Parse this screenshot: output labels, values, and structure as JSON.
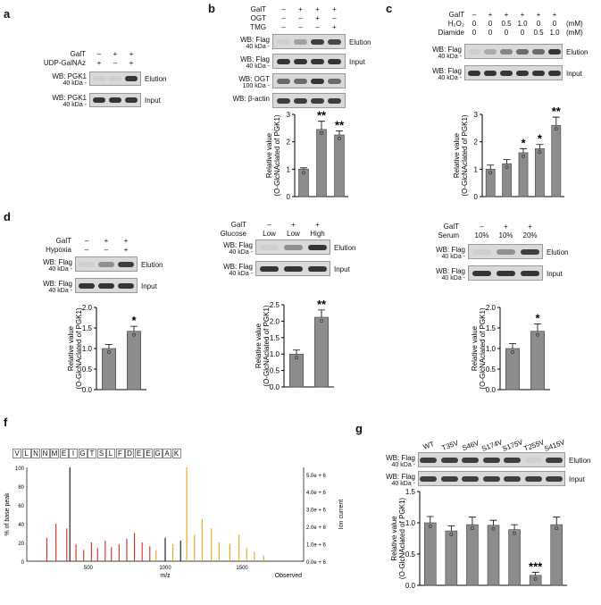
{
  "panels": {
    "a": {
      "label": "a",
      "rows": [
        {
          "name": "GalT",
          "values": [
            "–",
            "+",
            "+"
          ]
        },
        {
          "name": "UDP-GalNAz",
          "values": [
            "+",
            "–",
            "+"
          ]
        }
      ],
      "blots": [
        {
          "wb": "WB: PGK1",
          "kda": "40 kDa",
          "side": "Elution",
          "bands": [
            0.05,
            0.05,
            0.9
          ]
        },
        {
          "wb": "WB: PGK1",
          "kda": "40 kDa",
          "side": "Input",
          "bands": [
            0.9,
            0.9,
            0.9
          ]
        }
      ]
    },
    "b": {
      "label": "b",
      "rows": [
        {
          "name": "GalT",
          "values": [
            "–",
            "+",
            "+",
            "+"
          ]
        },
        {
          "name": "OGT",
          "values": [
            "–",
            "–",
            "+",
            "–"
          ]
        },
        {
          "name": "TMG",
          "values": [
            "–",
            "–",
            "–",
            "+"
          ]
        }
      ],
      "blots": [
        {
          "wb": "WB: Flag",
          "kda": "40 kDa",
          "side": "Elution",
          "bands": [
            0.05,
            0.3,
            0.85,
            0.8
          ]
        },
        {
          "wb": "WB: Flag",
          "kda": "40 kDa",
          "side": "Input",
          "bands": [
            0.9,
            0.9,
            0.9,
            0.9
          ]
        },
        {
          "wb": "WB: OGT",
          "kda": "100 kDa",
          "side": "",
          "bands": [
            0.6,
            0.6,
            0.9,
            0.6
          ]
        },
        {
          "wb": "WB: β-actin",
          "kda": "",
          "side": "",
          "bands": [
            0.85,
            0.85,
            0.85,
            0.85
          ]
        }
      ],
      "ylabel": [
        "Relative value",
        "(O-GlcNAclated of PGK1)"
      ]
    },
    "c": {
      "label": "c",
      "rows": [
        {
          "name": "GalT",
          "values": [
            "–",
            "+",
            "+",
            "+",
            "+",
            "+"
          ],
          "unit": ""
        },
        {
          "name": "H₂O₂",
          "values": [
            "0",
            "0",
            "0.5",
            "1.0",
            "0",
            "0"
          ],
          "unit": "(mM)"
        },
        {
          "name": "Diamide",
          "values": [
            "0",
            "0",
            "0",
            "0",
            "0.5",
            "1.0"
          ],
          "unit": "(mM)"
        }
      ],
      "blots": [
        {
          "wb": "WB: Flag",
          "kda": "40 kDa",
          "side": "Elution",
          "bands": [
            0.05,
            0.25,
            0.45,
            0.6,
            0.6,
            0.9
          ]
        },
        {
          "wb": "WB: Flag",
          "kda": "40 kDa",
          "side": "Input",
          "bands": [
            0.9,
            0.9,
            0.9,
            0.9,
            0.9,
            0.9
          ]
        }
      ],
      "ylabel": [
        "Relative value",
        "(O-GlcNAclated of PGK1)"
      ]
    },
    "d1": {
      "label": "d",
      "rows": [
        {
          "name": "GalT",
          "values": [
            "–",
            "+",
            "+"
          ]
        },
        {
          "name": "Hypoxia",
          "values": [
            "–",
            "–",
            "+"
          ]
        }
      ],
      "blots": [
        {
          "wb": "WB: Flag",
          "kda": "40 kDa",
          "side": "Elution",
          "bands": [
            0.05,
            0.4,
            0.85
          ]
        },
        {
          "wb": "WB: Flag",
          "kda": "40 kDa",
          "side": "Input",
          "bands": [
            0.9,
            0.9,
            0.9
          ]
        }
      ],
      "ylabel": [
        "Relative value",
        "(O-GlcNAclated of PGK1)"
      ]
    },
    "d2": {
      "rows": [
        {
          "name": "GalT",
          "values": [
            "–",
            "+",
            "+"
          ]
        },
        {
          "name": "Glucose",
          "values": [
            "Low",
            "Low",
            "High"
          ]
        }
      ],
      "blots": [
        {
          "wb": "WB: Flag",
          "kda": "40 kDa",
          "side": "Elution",
          "bands": [
            0.05,
            0.4,
            0.9
          ]
        },
        {
          "wb": "WB: Flag",
          "kda": "40 kDa",
          "side": "Input",
          "bands": [
            0.9,
            0.9,
            0.9
          ]
        }
      ],
      "ylabel": [
        "Relative value",
        "(O-GlcNAclated of PGK1)"
      ]
    },
    "d3": {
      "rows": [
        {
          "name": "GalT",
          "values": [
            "–",
            "+",
            "+"
          ]
        },
        {
          "name": "Serum",
          "values": [
            "10%",
            "10%",
            "20%"
          ]
        }
      ],
      "blots": [
        {
          "wb": "WB: Flag",
          "kda": "40 kDa",
          "side": "Elution",
          "bands": [
            0.05,
            0.4,
            0.85
          ]
        },
        {
          "wb": "WB: Flag",
          "kda": "40 kDa",
          "side": "Input",
          "bands": [
            0.9,
            0.9,
            0.9
          ]
        }
      ],
      "ylabel": [
        "Relative value",
        "(O-GlcNAclated of PGK1)"
      ]
    },
    "f": {
      "label": "f",
      "sequence": [
        "V",
        "L",
        "N",
        "N",
        "M",
        "E",
        "I",
        "G",
        "T",
        "S",
        "L",
        "F",
        "D",
        "E",
        "E",
        "G",
        "A",
        "K"
      ],
      "ylabel": "% of base peak",
      "y2label": "Ion current",
      "xlabel": "m/z",
      "observed": "Observed",
      "yticks": [
        "0",
        "20",
        "40",
        "60",
        "80",
        "100"
      ],
      "xticks": [
        "500",
        "1000",
        "1500"
      ],
      "y2ticks": [
        "0.0e + 6",
        "1.0e + 6",
        "2.0e + 6",
        "3.0e + 6",
        "4.0e + 6",
        "5.0e + 6"
      ]
    },
    "g": {
      "label": "g",
      "lanes": [
        "WT",
        "T35V",
        "S46V",
        "S174V",
        "S175V",
        "T255V",
        "S415V"
      ],
      "blots": [
        {
          "wb": "WB: Flag",
          "kda": "40 kDa",
          "side": "Elution",
          "bands": [
            0.85,
            0.85,
            0.85,
            0.85,
            0.85,
            0.05,
            0.85
          ]
        },
        {
          "wb": "WB: Flag",
          "kda": "40 kDa",
          "side": "Input",
          "bands": [
            0.85,
            0.85,
            0.85,
            0.85,
            0.85,
            0.85,
            0.85
          ]
        }
      ],
      "ylabel": [
        "Relative value",
        "(O-GlcNAclated of PGK1)"
      ]
    }
  },
  "chart_data": [
    {
      "id": "b",
      "type": "bar",
      "categories": [
        "1",
        "2",
        "3"
      ],
      "values": [
        1.0,
        2.45,
        2.25
      ],
      "errors": [
        0.05,
        0.3,
        0.15
      ],
      "sig": [
        "",
        "**",
        "**"
      ],
      "ylim": [
        0,
        3
      ],
      "yticks": [
        "0",
        "1",
        "2",
        "3"
      ],
      "color": "#8c8c8c"
    },
    {
      "id": "c",
      "type": "bar",
      "categories": [
        "1",
        "2",
        "3",
        "4",
        "5"
      ],
      "values": [
        1.0,
        1.2,
        1.6,
        1.75,
        2.6
      ],
      "errors": [
        0.15,
        0.15,
        0.15,
        0.15,
        0.3
      ],
      "sig": [
        "",
        "",
        "*",
        "*",
        "**"
      ],
      "ylim": [
        0,
        3
      ],
      "yticks": [
        "0",
        "1",
        "2",
        "3"
      ],
      "color": "#8c8c8c"
    },
    {
      "id": "d1",
      "type": "bar",
      "categories": [
        "1",
        "2"
      ],
      "values": [
        1.0,
        1.42
      ],
      "errors": [
        0.1,
        0.12
      ],
      "sig": [
        "",
        "*"
      ],
      "ylim": [
        0,
        2
      ],
      "yticks": [
        "0.0",
        "0.5",
        "1.0",
        "1.5",
        "2.0"
      ],
      "color": "#8c8c8c"
    },
    {
      "id": "d2",
      "type": "bar",
      "categories": [
        "1",
        "2"
      ],
      "values": [
        1.0,
        2.12
      ],
      "errors": [
        0.12,
        0.22
      ],
      "sig": [
        "",
        "**"
      ],
      "ylim": [
        0,
        2.5
      ],
      "yticks": [
        "0.0",
        "0.5",
        "1.0",
        "1.5",
        "2.0",
        "2.5"
      ],
      "color": "#8c8c8c"
    },
    {
      "id": "d3",
      "type": "bar",
      "categories": [
        "1",
        "2"
      ],
      "values": [
        1.0,
        1.42
      ],
      "errors": [
        0.12,
        0.18
      ],
      "sig": [
        "",
        "*"
      ],
      "ylim": [
        0,
        2
      ],
      "yticks": [
        "0.0",
        "0.5",
        "1.0",
        "1.5",
        "2.0"
      ],
      "color": "#8c8c8c"
    },
    {
      "id": "g",
      "type": "bar",
      "categories": [
        "WT",
        "T35V",
        "S46V",
        "S174V",
        "S175V",
        "T255V",
        "S415V"
      ],
      "values": [
        1.0,
        0.87,
        0.97,
        0.96,
        0.89,
        0.16,
        0.97
      ],
      "errors": [
        0.1,
        0.08,
        0.12,
        0.08,
        0.08,
        0.05,
        0.12
      ],
      "sig": [
        "",
        "",
        "",
        "",
        "",
        "***",
        ""
      ],
      "ylim": [
        0,
        1.5
      ],
      "yticks": [
        "0.0",
        "0.5",
        "1.0",
        "1.5"
      ],
      "color": "#8c8c8c"
    },
    {
      "id": "f",
      "type": "bar",
      "xlim": [
        100,
        1900
      ],
      "ylim": [
        0,
        100
      ],
      "peaks": [
        {
          "x": 230,
          "y": 25,
          "c": "r"
        },
        {
          "x": 290,
          "y": 40,
          "c": "r"
        },
        {
          "x": 360,
          "y": 35,
          "c": "r"
        },
        {
          "x": 380,
          "y": 100,
          "c": "k"
        },
        {
          "x": 420,
          "y": 18,
          "c": "r"
        },
        {
          "x": 470,
          "y": 12,
          "c": "r"
        },
        {
          "x": 520,
          "y": 20,
          "c": "r"
        },
        {
          "x": 560,
          "y": 14,
          "c": "r"
        },
        {
          "x": 610,
          "y": 22,
          "c": "r"
        },
        {
          "x": 650,
          "y": 15,
          "c": "r"
        },
        {
          "x": 700,
          "y": 18,
          "c": "r"
        },
        {
          "x": 750,
          "y": 24,
          "c": "r"
        },
        {
          "x": 800,
          "y": 30,
          "c": "r"
        },
        {
          "x": 850,
          "y": 20,
          "c": "r"
        },
        {
          "x": 900,
          "y": 16,
          "c": "r"
        },
        {
          "x": 940,
          "y": 12,
          "c": "o"
        },
        {
          "x": 1000,
          "y": 25,
          "c": "k"
        },
        {
          "x": 1050,
          "y": 18,
          "c": "o"
        },
        {
          "x": 1100,
          "y": 22,
          "c": "k"
        },
        {
          "x": 1140,
          "y": 100,
          "c": "o"
        },
        {
          "x": 1190,
          "y": 28,
          "c": "o"
        },
        {
          "x": 1240,
          "y": 45,
          "c": "o"
        },
        {
          "x": 1300,
          "y": 35,
          "c": "o"
        },
        {
          "x": 1350,
          "y": 20,
          "c": "o"
        },
        {
          "x": 1420,
          "y": 18,
          "c": "o"
        },
        {
          "x": 1480,
          "y": 28,
          "c": "o"
        },
        {
          "x": 1530,
          "y": 14,
          "c": "o"
        },
        {
          "x": 1580,
          "y": 10,
          "c": "o"
        },
        {
          "x": 1640,
          "y": 6,
          "c": "o"
        }
      ],
      "peak_colors": {
        "r": "#d62a1f",
        "k": "#111111",
        "o": "#e8a317"
      }
    }
  ]
}
